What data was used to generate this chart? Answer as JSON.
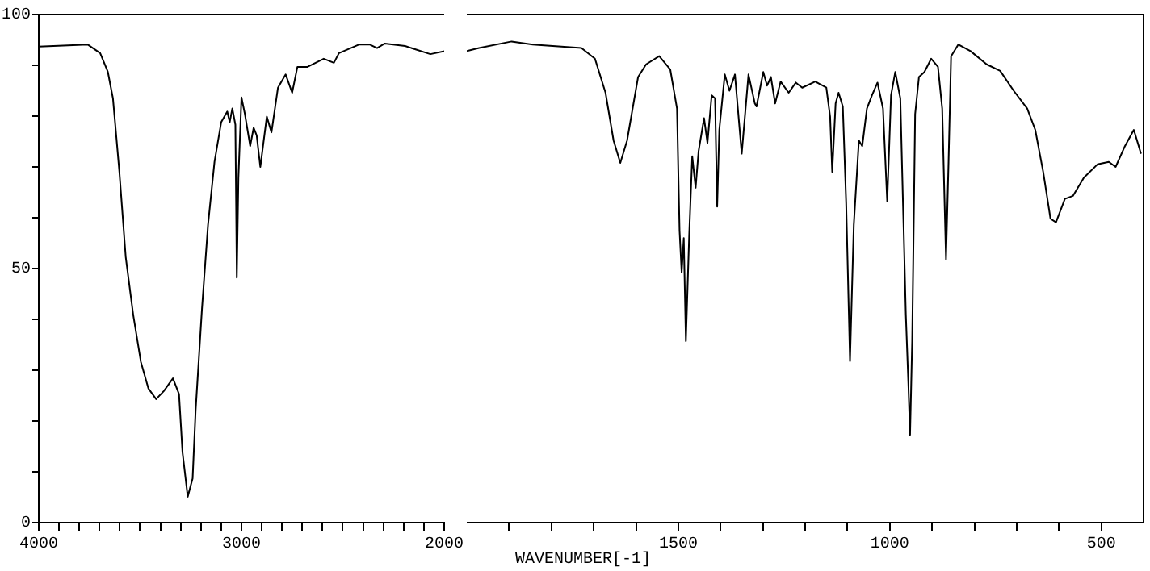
{
  "chart_data": [
    {
      "type": "line",
      "marker": "none",
      "grid": false,
      "xlim": [
        4000,
        2000
      ],
      "ylim": [
        0,
        100
      ],
      "xticks": [
        4000,
        {
          "value": 3900,
          "label": null
        },
        {
          "value": 3800,
          "label": null
        },
        {
          "value": 3700,
          "label": null
        },
        {
          "value": 3600,
          "label": null
        },
        {
          "value": 3500,
          "label": null
        },
        {
          "value": 3400,
          "label": null
        },
        {
          "value": 3300,
          "label": null
        },
        {
          "value": 3200,
          "label": null
        },
        {
          "value": 3100,
          "label": null
        },
        3000,
        {
          "value": 2900,
          "label": null
        },
        {
          "value": 2800,
          "label": null
        },
        {
          "value": 2700,
          "label": null
        },
        {
          "value": 2600,
          "label": null
        },
        {
          "value": 2500,
          "label": null
        },
        {
          "value": 2400,
          "label": null
        },
        {
          "value": 2300,
          "label": null
        },
        {
          "value": 2200,
          "label": null
        },
        {
          "value": 2100,
          "label": null
        },
        2000
      ],
      "yticks": [
        0,
        {
          "value": 10,
          "label": null
        },
        {
          "value": 20,
          "label": null
        },
        {
          "value": 30,
          "label": null
        },
        {
          "value": 40,
          "label": null
        },
        50,
        {
          "value": 60,
          "label": null
        },
        {
          "value": 70,
          "label": null
        },
        {
          "value": 80,
          "label": null
        },
        {
          "value": 90,
          "label": null
        },
        100
      ],
      "x": [
        4000,
        3759,
        3697,
        3659,
        3634,
        3602,
        3571,
        3534,
        3496,
        3459,
        3421,
        3383,
        3338,
        3308,
        3291,
        3265,
        3241,
        3226,
        3195,
        3165,
        3133,
        3100,
        3070,
        3058,
        3045,
        3030,
        3023,
        3015,
        3000,
        2983,
        2957,
        2940,
        2925,
        2907,
        2875,
        2852,
        2820,
        2782,
        2750,
        2724,
        2674,
        2594,
        2544,
        2519,
        2419,
        2368,
        2331,
        2293,
        2193,
        2068,
        2000
      ],
      "series": [
        {
          "color": "#000000",
          "values": [
            93.7,
            94.1,
            92.4,
            88.7,
            83.5,
            68.9,
            52.3,
            40.9,
            31.6,
            26.4,
            24.3,
            25.9,
            28.4,
            25.3,
            13.9,
            5.1,
            8.7,
            22.2,
            42.0,
            58.6,
            71.0,
            78.8,
            80.9,
            78.8,
            81.5,
            78.3,
            48.2,
            67.9,
            83.7,
            80.4,
            74.1,
            77.7,
            76.2,
            70.0,
            79.9,
            76.8,
            85.6,
            88.2,
            84.6,
            89.7,
            89.7,
            91.3,
            90.5,
            92.4,
            94.1,
            94.1,
            93.4,
            94.3,
            93.8,
            92.2,
            92.8
          ]
        }
      ]
    },
    {
      "type": "line",
      "xlabel": "WAVENUMBER[-1]",
      "marker": "none",
      "grid": false,
      "tick_labels": "x",
      "xlim": [
        2000,
        400
      ],
      "ylim": [
        0,
        100
      ],
      "xticks": [
        {
          "value": 1900,
          "label": null
        },
        {
          "value": 1800,
          "label": null
        },
        {
          "value": 1700,
          "label": null
        },
        {
          "value": 1600,
          "label": null
        },
        1500,
        {
          "value": 1400,
          "label": null
        },
        {
          "value": 1300,
          "label": null
        },
        {
          "value": 1200,
          "label": null
        },
        {
          "value": 1100,
          "label": null
        },
        1000,
        {
          "value": 900,
          "label": null
        },
        {
          "value": 800,
          "label": null
        },
        {
          "value": 700,
          "label": null
        },
        {
          "value": 600,
          "label": null
        },
        500
      ],
      "x": [
        2000,
        1971,
        1894,
        1844,
        1729,
        1697,
        1672,
        1653,
        1637,
        1621,
        1595,
        1576,
        1545,
        1519,
        1503,
        1497,
        1492,
        1487,
        1482,
        1474,
        1467,
        1459,
        1452,
        1439,
        1431,
        1421,
        1413,
        1408,
        1403,
        1390,
        1379,
        1366,
        1350,
        1334,
        1319,
        1315,
        1299,
        1290,
        1281,
        1271,
        1258,
        1239,
        1222,
        1207,
        1176,
        1150,
        1141,
        1136,
        1128,
        1121,
        1111,
        1103,
        1094,
        1085,
        1073,
        1065,
        1054,
        1042,
        1029,
        1016,
        1006,
        997,
        987,
        975,
        962,
        956,
        952,
        947,
        940,
        931,
        918,
        902,
        886,
        876,
        867,
        861,
        855,
        838,
        809,
        771,
        739,
        707,
        675,
        656,
        637,
        620,
        607,
        586,
        567,
        541,
        509,
        482,
        466,
        444,
        423,
        406
      ],
      "series": [
        {
          "color": "#000000",
          "values": [
            92.8,
            93.4,
            94.7,
            94.1,
            93.4,
            91.3,
            84.6,
            75.2,
            70.8,
            75.2,
            87.7,
            90.2,
            91.8,
            89.2,
            81.5,
            57.5,
            49.2,
            56.0,
            35.7,
            57.0,
            72.1,
            65.9,
            73.1,
            79.6,
            74.7,
            84.1,
            83.5,
            62.2,
            77.3,
            88.2,
            85.0,
            88.2,
            72.6,
            88.2,
            82.5,
            81.9,
            88.7,
            86.0,
            87.7,
            82.5,
            86.8,
            84.6,
            86.6,
            85.6,
            86.8,
            85.6,
            79.9,
            69.0,
            82.5,
            84.6,
            81.9,
            62.8,
            31.8,
            58.6,
            75.2,
            74.1,
            81.5,
            84.1,
            86.6,
            81.5,
            63.2,
            84.1,
            88.7,
            83.5,
            40.9,
            27.4,
            17.2,
            35.7,
            80.4,
            87.7,
            88.7,
            91.3,
            89.7,
            81.5,
            51.8,
            71.0,
            91.8,
            94.1,
            92.8,
            90.2,
            88.9,
            85.0,
            81.5,
            77.3,
            68.9,
            59.8,
            59.1,
            63.7,
            64.3,
            67.9,
            70.5,
            71.0,
            70.0,
            74.1,
            77.3,
            72.6
          ]
        }
      ]
    }
  ]
}
